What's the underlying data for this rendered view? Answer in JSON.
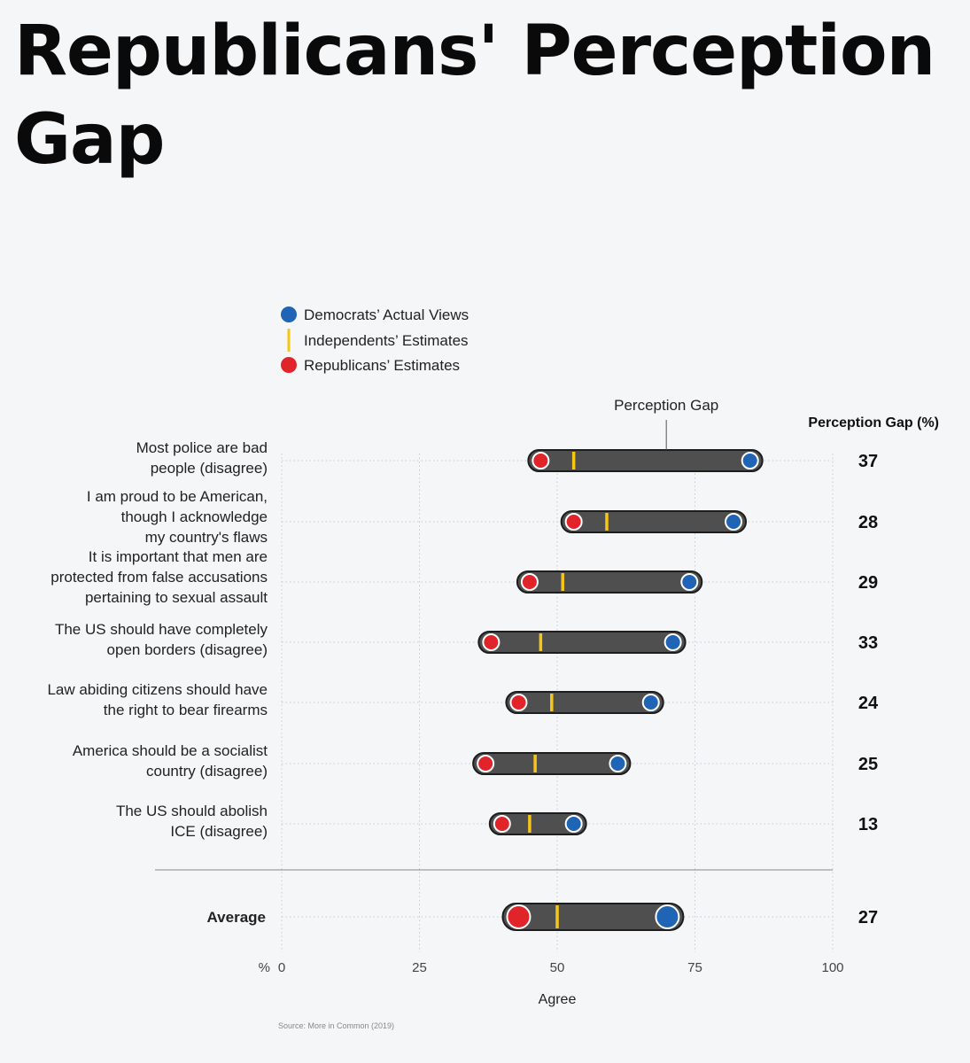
{
  "title": "Republicans' Perception Gap",
  "chart_data": {
    "type": "dumbbell",
    "legend": [
      {
        "name": "Democrats’ Actual Views",
        "color": "#1f64b5",
        "shape": "circle"
      },
      {
        "name": "Independents’ Estimates",
        "color": "#f5c518",
        "shape": "tick"
      },
      {
        "name": "Republicans’ Estimates",
        "color": "#e0242a",
        "shape": "circle"
      }
    ],
    "annotation": "Perception Gap",
    "gap_header": "Perception Gap (%)",
    "rows": [
      {
        "label": [
          "Most police are bad",
          "people (disagree)"
        ],
        "republicans": 47,
        "independents": 53,
        "democrats": 85,
        "gap": 37
      },
      {
        "label": [
          "I am proud to be American,",
          "though I acknowledge",
          "my country's flaws"
        ],
        "republicans": 53,
        "independents": 59,
        "democrats": 82,
        "gap": 28
      },
      {
        "label": [
          "It is important that men are",
          "protected from false accusations",
          "pertaining to sexual assault"
        ],
        "republicans": 45,
        "independents": 51,
        "democrats": 74,
        "gap": 29
      },
      {
        "label": [
          "The US should have completely",
          "open borders (disagree)"
        ],
        "republicans": 38,
        "independents": 47,
        "democrats": 71,
        "gap": 33
      },
      {
        "label": [
          "Law abiding citizens should have",
          "the right to bear firearms"
        ],
        "republicans": 43,
        "independents": 49,
        "democrats": 67,
        "gap": 24
      },
      {
        "label": [
          "America should be a socialist",
          "country (disagree)"
        ],
        "republicans": 37,
        "independents": 46,
        "democrats": 61,
        "gap": 25
      },
      {
        "label": [
          "The US should abolish",
          "ICE (disagree)"
        ],
        "republicans": 40,
        "independents": 45,
        "democrats": 53,
        "gap": 13
      }
    ],
    "average": {
      "label": "Average",
      "republicans": 43,
      "independents": 50,
      "democrats": 70,
      "gap": 27
    },
    "x_ticks": [
      0,
      25,
      50,
      75,
      100
    ],
    "x_unit": "%",
    "xlabel": "Agree",
    "xlim": [
      0,
      100
    ],
    "source": "Source: More in Common (2019)"
  }
}
